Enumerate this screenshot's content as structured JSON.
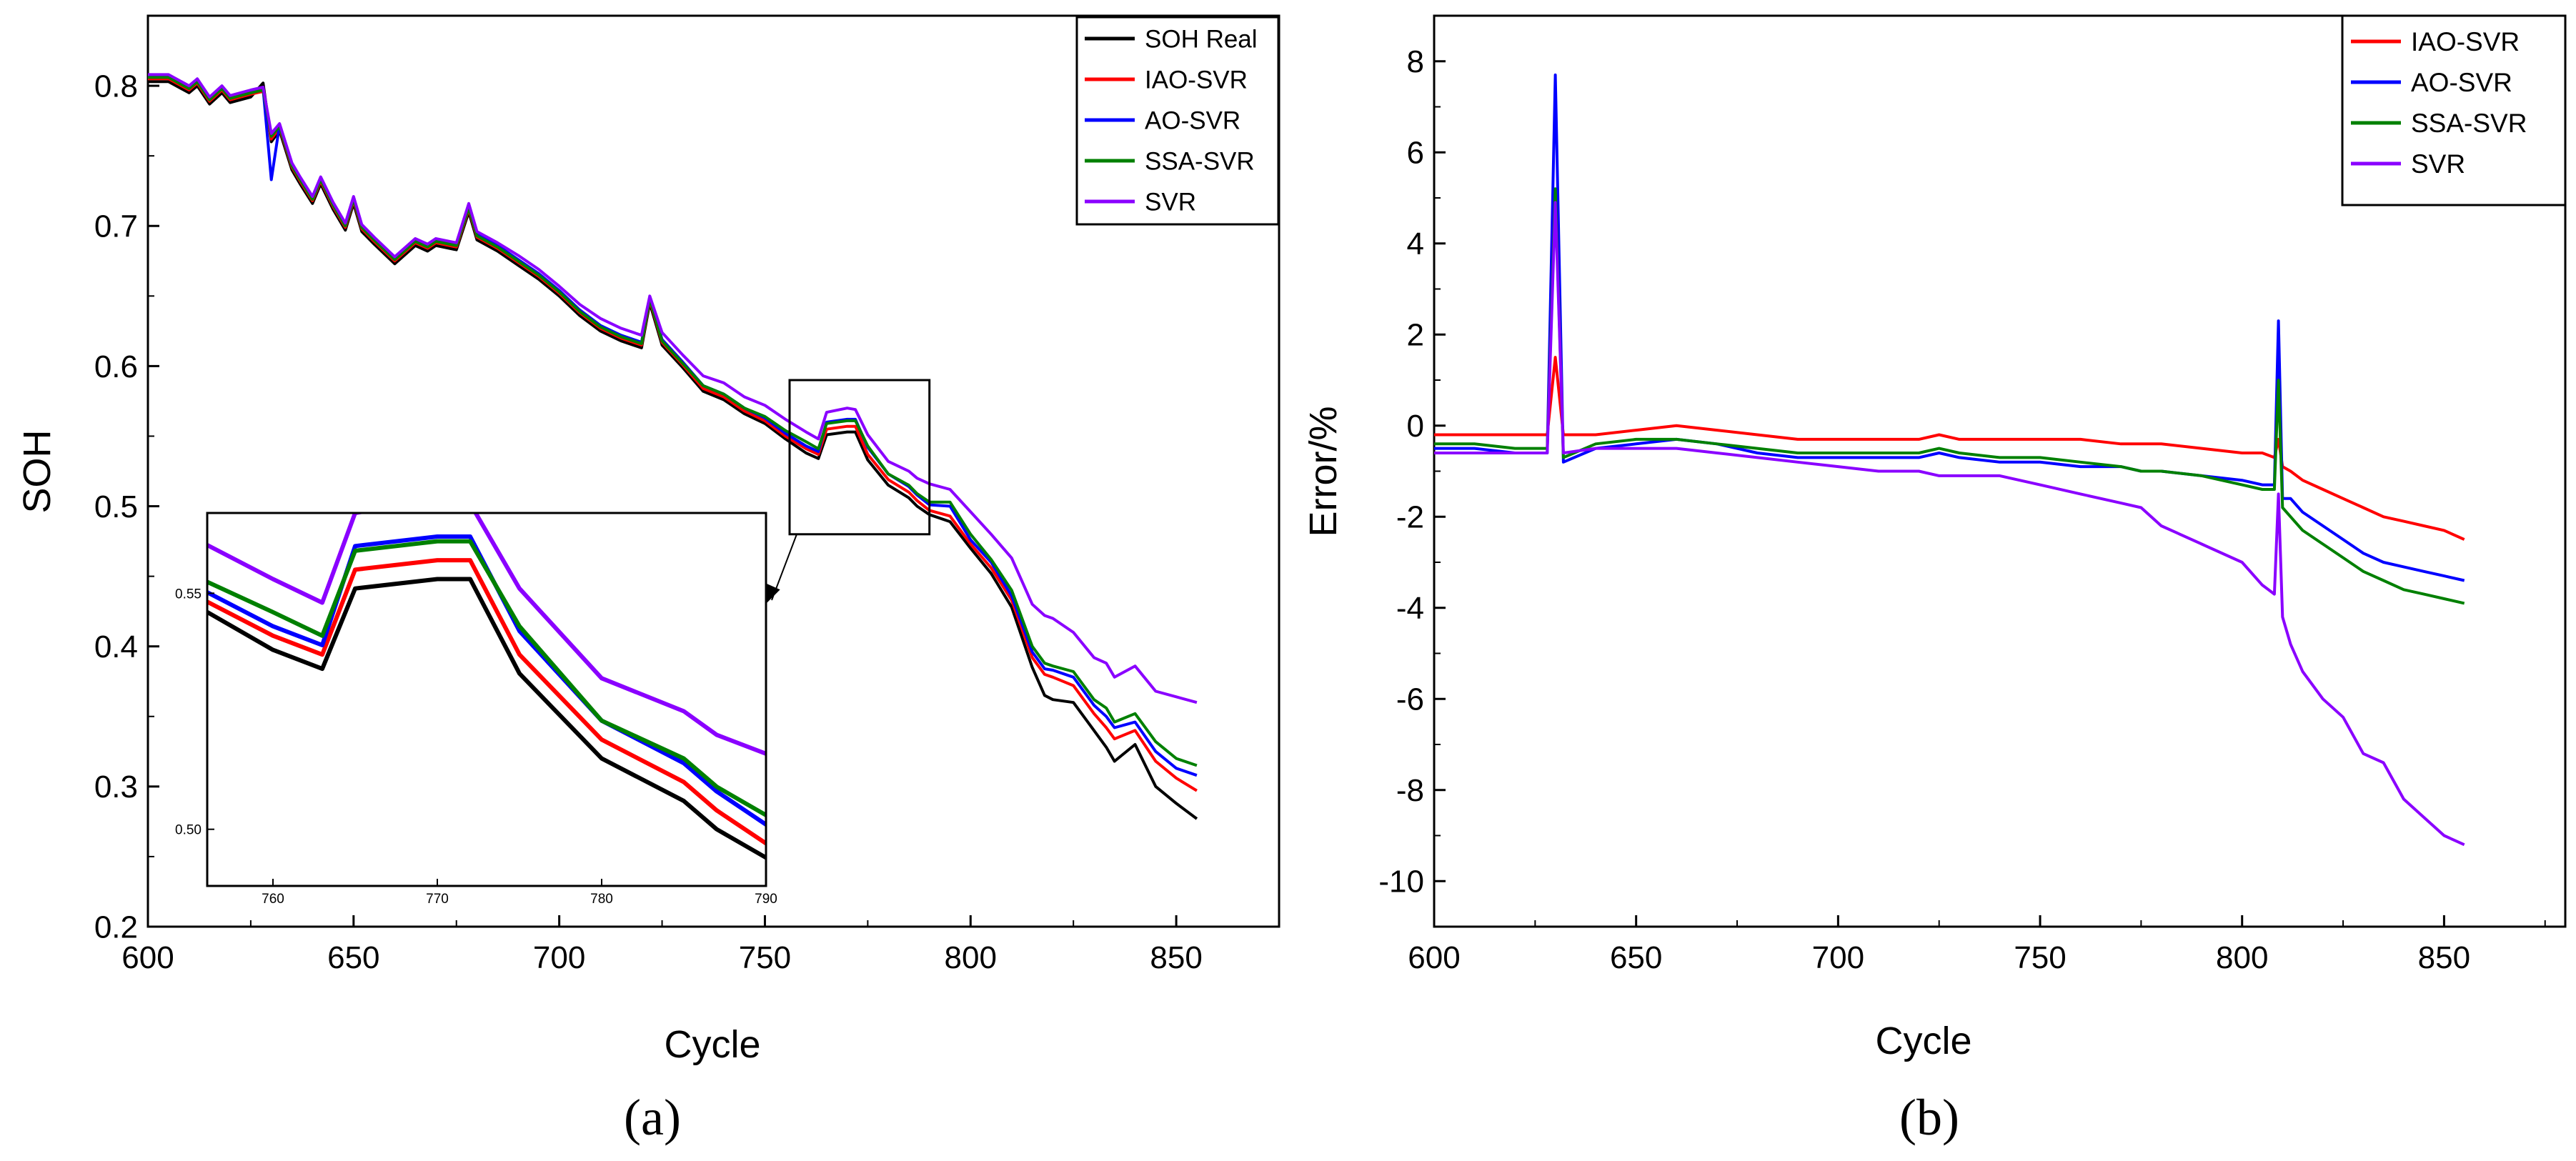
{
  "colors": {
    "soh_real": "#000000",
    "iao_svr": "#ff0000",
    "ao_svr": "#0000ff",
    "ssa_svr": "#008000",
    "svr": "#8a00ff"
  },
  "chart_data": [
    {
      "type": "line",
      "panel_label": "(a)",
      "xlabel": "Cycle",
      "ylabel": "SOH",
      "xlim": [
        600,
        875
      ],
      "ylim": [
        0.2,
        0.85
      ],
      "x_ticks": [
        "600",
        "650",
        "700",
        "750",
        "800",
        "850"
      ],
      "y_ticks": [
        "0.2",
        "0.3",
        "0.4",
        "0.5",
        "0.6",
        "0.7",
        "0.8"
      ],
      "legend": [
        "SOH Real",
        "IAO-SVR",
        "AO-SVR",
        "SSA-SVR",
        "SVR"
      ],
      "legend_position": "top-right",
      "x": [
        600,
        605,
        610,
        612,
        615,
        618,
        620,
        625,
        628,
        630,
        632,
        635,
        637,
        640,
        642,
        645,
        648,
        650,
        652,
        655,
        660,
        665,
        668,
        670,
        675,
        678,
        680,
        685,
        690,
        695,
        700,
        705,
        710,
        715,
        720,
        722,
        725,
        730,
        735,
        740,
        745,
        750,
        755,
        760,
        763,
        765,
        770,
        772,
        775,
        780,
        785,
        787,
        790,
        795,
        800,
        805,
        810,
        815,
        818,
        820,
        825,
        830,
        833,
        835,
        840,
        845,
        850,
        855
      ],
      "series": [
        {
          "name": "SOH Real",
          "values": [
            0.803,
            0.803,
            0.795,
            0.8,
            0.787,
            0.795,
            0.788,
            0.792,
            0.802,
            0.76,
            0.768,
            0.74,
            0.73,
            0.716,
            0.73,
            0.712,
            0.697,
            0.716,
            0.696,
            0.687,
            0.673,
            0.686,
            0.682,
            0.686,
            0.683,
            0.71,
            0.69,
            0.682,
            0.672,
            0.662,
            0.65,
            0.636,
            0.625,
            0.618,
            0.613,
            0.645,
            0.615,
            0.599,
            0.582,
            0.576,
            0.566,
            0.559,
            0.548,
            0.538,
            0.534,
            0.551,
            0.553,
            0.553,
            0.533,
            0.515,
            0.506,
            0.5,
            0.494,
            0.489,
            0.47,
            0.452,
            0.428,
            0.385,
            0.365,
            0.362,
            0.36,
            0.34,
            0.328,
            0.318,
            0.33,
            0.3,
            0.288,
            0.277
          ]
        },
        {
          "name": "IAO-SVR",
          "values": [
            0.805,
            0.805,
            0.797,
            0.802,
            0.789,
            0.797,
            0.79,
            0.794,
            0.796,
            0.762,
            0.77,
            0.742,
            0.732,
            0.718,
            0.732,
            0.714,
            0.699,
            0.718,
            0.698,
            0.689,
            0.675,
            0.688,
            0.684,
            0.688,
            0.685,
            0.712,
            0.692,
            0.684,
            0.674,
            0.664,
            0.652,
            0.638,
            0.627,
            0.62,
            0.615,
            0.647,
            0.617,
            0.601,
            0.584,
            0.578,
            0.568,
            0.561,
            0.55,
            0.541,
            0.537,
            0.555,
            0.557,
            0.557,
            0.537,
            0.519,
            0.51,
            0.504,
            0.497,
            0.493,
            0.473,
            0.456,
            0.433,
            0.392,
            0.38,
            0.378,
            0.372,
            0.352,
            0.342,
            0.334,
            0.34,
            0.318,
            0.306,
            0.297
          ]
        },
        {
          "name": "AO-SVR",
          "values": [
            0.807,
            0.807,
            0.799,
            0.804,
            0.791,
            0.799,
            0.792,
            0.796,
            0.798,
            0.733,
            0.772,
            0.744,
            0.734,
            0.72,
            0.734,
            0.716,
            0.701,
            0.72,
            0.7,
            0.691,
            0.677,
            0.69,
            0.686,
            0.69,
            0.687,
            0.714,
            0.694,
            0.686,
            0.676,
            0.666,
            0.654,
            0.64,
            0.629,
            0.622,
            0.617,
            0.649,
            0.619,
            0.603,
            0.586,
            0.58,
            0.57,
            0.563,
            0.552,
            0.543,
            0.539,
            0.56,
            0.562,
            0.562,
            0.542,
            0.523,
            0.514,
            0.508,
            0.501,
            0.5,
            0.476,
            0.46,
            0.436,
            0.396,
            0.384,
            0.383,
            0.378,
            0.358,
            0.35,
            0.342,
            0.346,
            0.325,
            0.313,
            0.308
          ]
        },
        {
          "name": "SSA-SVR",
          "values": [
            0.806,
            0.806,
            0.798,
            0.803,
            0.79,
            0.798,
            0.791,
            0.795,
            0.797,
            0.764,
            0.771,
            0.743,
            0.733,
            0.719,
            0.733,
            0.715,
            0.7,
            0.719,
            0.699,
            0.69,
            0.676,
            0.689,
            0.685,
            0.689,
            0.686,
            0.713,
            0.693,
            0.685,
            0.675,
            0.665,
            0.653,
            0.639,
            0.628,
            0.621,
            0.616,
            0.648,
            0.618,
            0.602,
            0.586,
            0.58,
            0.57,
            0.564,
            0.554,
            0.546,
            0.541,
            0.559,
            0.561,
            0.561,
            0.543,
            0.523,
            0.515,
            0.509,
            0.503,
            0.503,
            0.48,
            0.462,
            0.44,
            0.4,
            0.388,
            0.386,
            0.382,
            0.362,
            0.356,
            0.346,
            0.352,
            0.332,
            0.32,
            0.315
          ]
        },
        {
          "name": "SVR",
          "values": [
            0.808,
            0.808,
            0.8,
            0.805,
            0.792,
            0.8,
            0.793,
            0.797,
            0.799,
            0.766,
            0.773,
            0.745,
            0.735,
            0.721,
            0.735,
            0.717,
            0.702,
            0.721,
            0.701,
            0.692,
            0.678,
            0.691,
            0.687,
            0.691,
            0.688,
            0.716,
            0.696,
            0.688,
            0.679,
            0.669,
            0.657,
            0.644,
            0.634,
            0.627,
            0.622,
            0.65,
            0.624,
            0.608,
            0.593,
            0.588,
            0.578,
            0.572,
            0.562,
            0.553,
            0.548,
            0.567,
            0.57,
            0.569,
            0.551,
            0.532,
            0.525,
            0.52,
            0.516,
            0.512,
            0.496,
            0.48,
            0.463,
            0.43,
            0.422,
            0.42,
            0.41,
            0.392,
            0.388,
            0.378,
            0.386,
            0.368,
            0.364,
            0.36
          ]
        }
      ],
      "inset": {
        "xlim": [
          756,
          790
        ],
        "ylim": [
          0.488,
          0.567
        ],
        "x_ticks": [
          "760",
          "770",
          "780",
          "790"
        ],
        "y_ticks": [
          "0.50",
          "0.55"
        ],
        "zoom_region": {
          "x": [
            756,
            790
          ],
          "y": [
            0.48,
            0.59
          ]
        }
      }
    },
    {
      "type": "line",
      "panel_label": "(b)",
      "xlabel": "Cycle",
      "ylabel": "Error/%",
      "xlim": [
        600,
        880
      ],
      "ylim": [
        -11,
        9
      ],
      "x_ticks": [
        "600",
        "650",
        "700",
        "750",
        "800",
        "850"
      ],
      "y_ticks": [
        "-10",
        "-8",
        "-6",
        "-4",
        "-2",
        "0",
        "2",
        "4",
        "6",
        "8"
      ],
      "legend": [
        "IAO-SVR",
        "AO-SVR",
        "SSA-SVR",
        "SVR"
      ],
      "legend_position": "top-right",
      "x": [
        600,
        610,
        620,
        628,
        630,
        632,
        640,
        650,
        660,
        670,
        680,
        690,
        700,
        710,
        720,
        725,
        730,
        740,
        750,
        760,
        770,
        775,
        780,
        790,
        800,
        805,
        808,
        809,
        810,
        812,
        815,
        820,
        825,
        830,
        835,
        840,
        845,
        850,
        855
      ],
      "series": [
        {
          "name": "IAO-SVR",
          "values": [
            -0.2,
            -0.2,
            -0.2,
            -0.2,
            1.5,
            -0.2,
            -0.2,
            -0.1,
            0.0,
            -0.1,
            -0.2,
            -0.3,
            -0.3,
            -0.3,
            -0.3,
            -0.2,
            -0.3,
            -0.3,
            -0.3,
            -0.3,
            -0.4,
            -0.4,
            -0.4,
            -0.5,
            -0.6,
            -0.6,
            -0.7,
            -0.3,
            -0.9,
            -1.0,
            -1.2,
            -1.4,
            -1.6,
            -1.8,
            -2.0,
            -2.1,
            -2.2,
            -2.3,
            -2.5
          ]
        },
        {
          "name": "AO-SVR",
          "values": [
            -0.5,
            -0.5,
            -0.6,
            -0.6,
            7.7,
            -0.8,
            -0.5,
            -0.4,
            -0.3,
            -0.4,
            -0.6,
            -0.7,
            -0.7,
            -0.7,
            -0.7,
            -0.6,
            -0.7,
            -0.8,
            -0.8,
            -0.9,
            -0.9,
            -1.0,
            -1.0,
            -1.1,
            -1.2,
            -1.3,
            -1.3,
            2.3,
            -1.6,
            -1.6,
            -1.9,
            -2.2,
            -2.5,
            -2.8,
            -3.0,
            -3.1,
            -3.2,
            -3.3,
            -3.4
          ]
        },
        {
          "name": "SSA-SVR",
          "values": [
            -0.4,
            -0.4,
            -0.5,
            -0.5,
            5.2,
            -0.7,
            -0.4,
            -0.3,
            -0.3,
            -0.4,
            -0.5,
            -0.6,
            -0.6,
            -0.6,
            -0.6,
            -0.5,
            -0.6,
            -0.7,
            -0.7,
            -0.8,
            -0.9,
            -1.0,
            -1.0,
            -1.1,
            -1.3,
            -1.4,
            -1.4,
            1.0,
            -1.8,
            -2.0,
            -2.3,
            -2.6,
            -2.9,
            -3.2,
            -3.4,
            -3.6,
            -3.7,
            -3.8,
            -3.9
          ]
        },
        {
          "name": "SVR",
          "values": [
            -0.6,
            -0.6,
            -0.6,
            -0.6,
            4.9,
            -0.6,
            -0.5,
            -0.5,
            -0.5,
            -0.6,
            -0.7,
            -0.8,
            -0.9,
            -1.0,
            -1.0,
            -1.1,
            -1.1,
            -1.1,
            -1.3,
            -1.5,
            -1.7,
            -1.8,
            -2.2,
            -2.6,
            -3.0,
            -3.5,
            -3.7,
            -1.5,
            -4.2,
            -4.8,
            -5.4,
            -6.0,
            -6.4,
            -7.2,
            -7.4,
            -8.2,
            -8.6,
            -9.0,
            -9.2
          ]
        }
      ]
    }
  ]
}
